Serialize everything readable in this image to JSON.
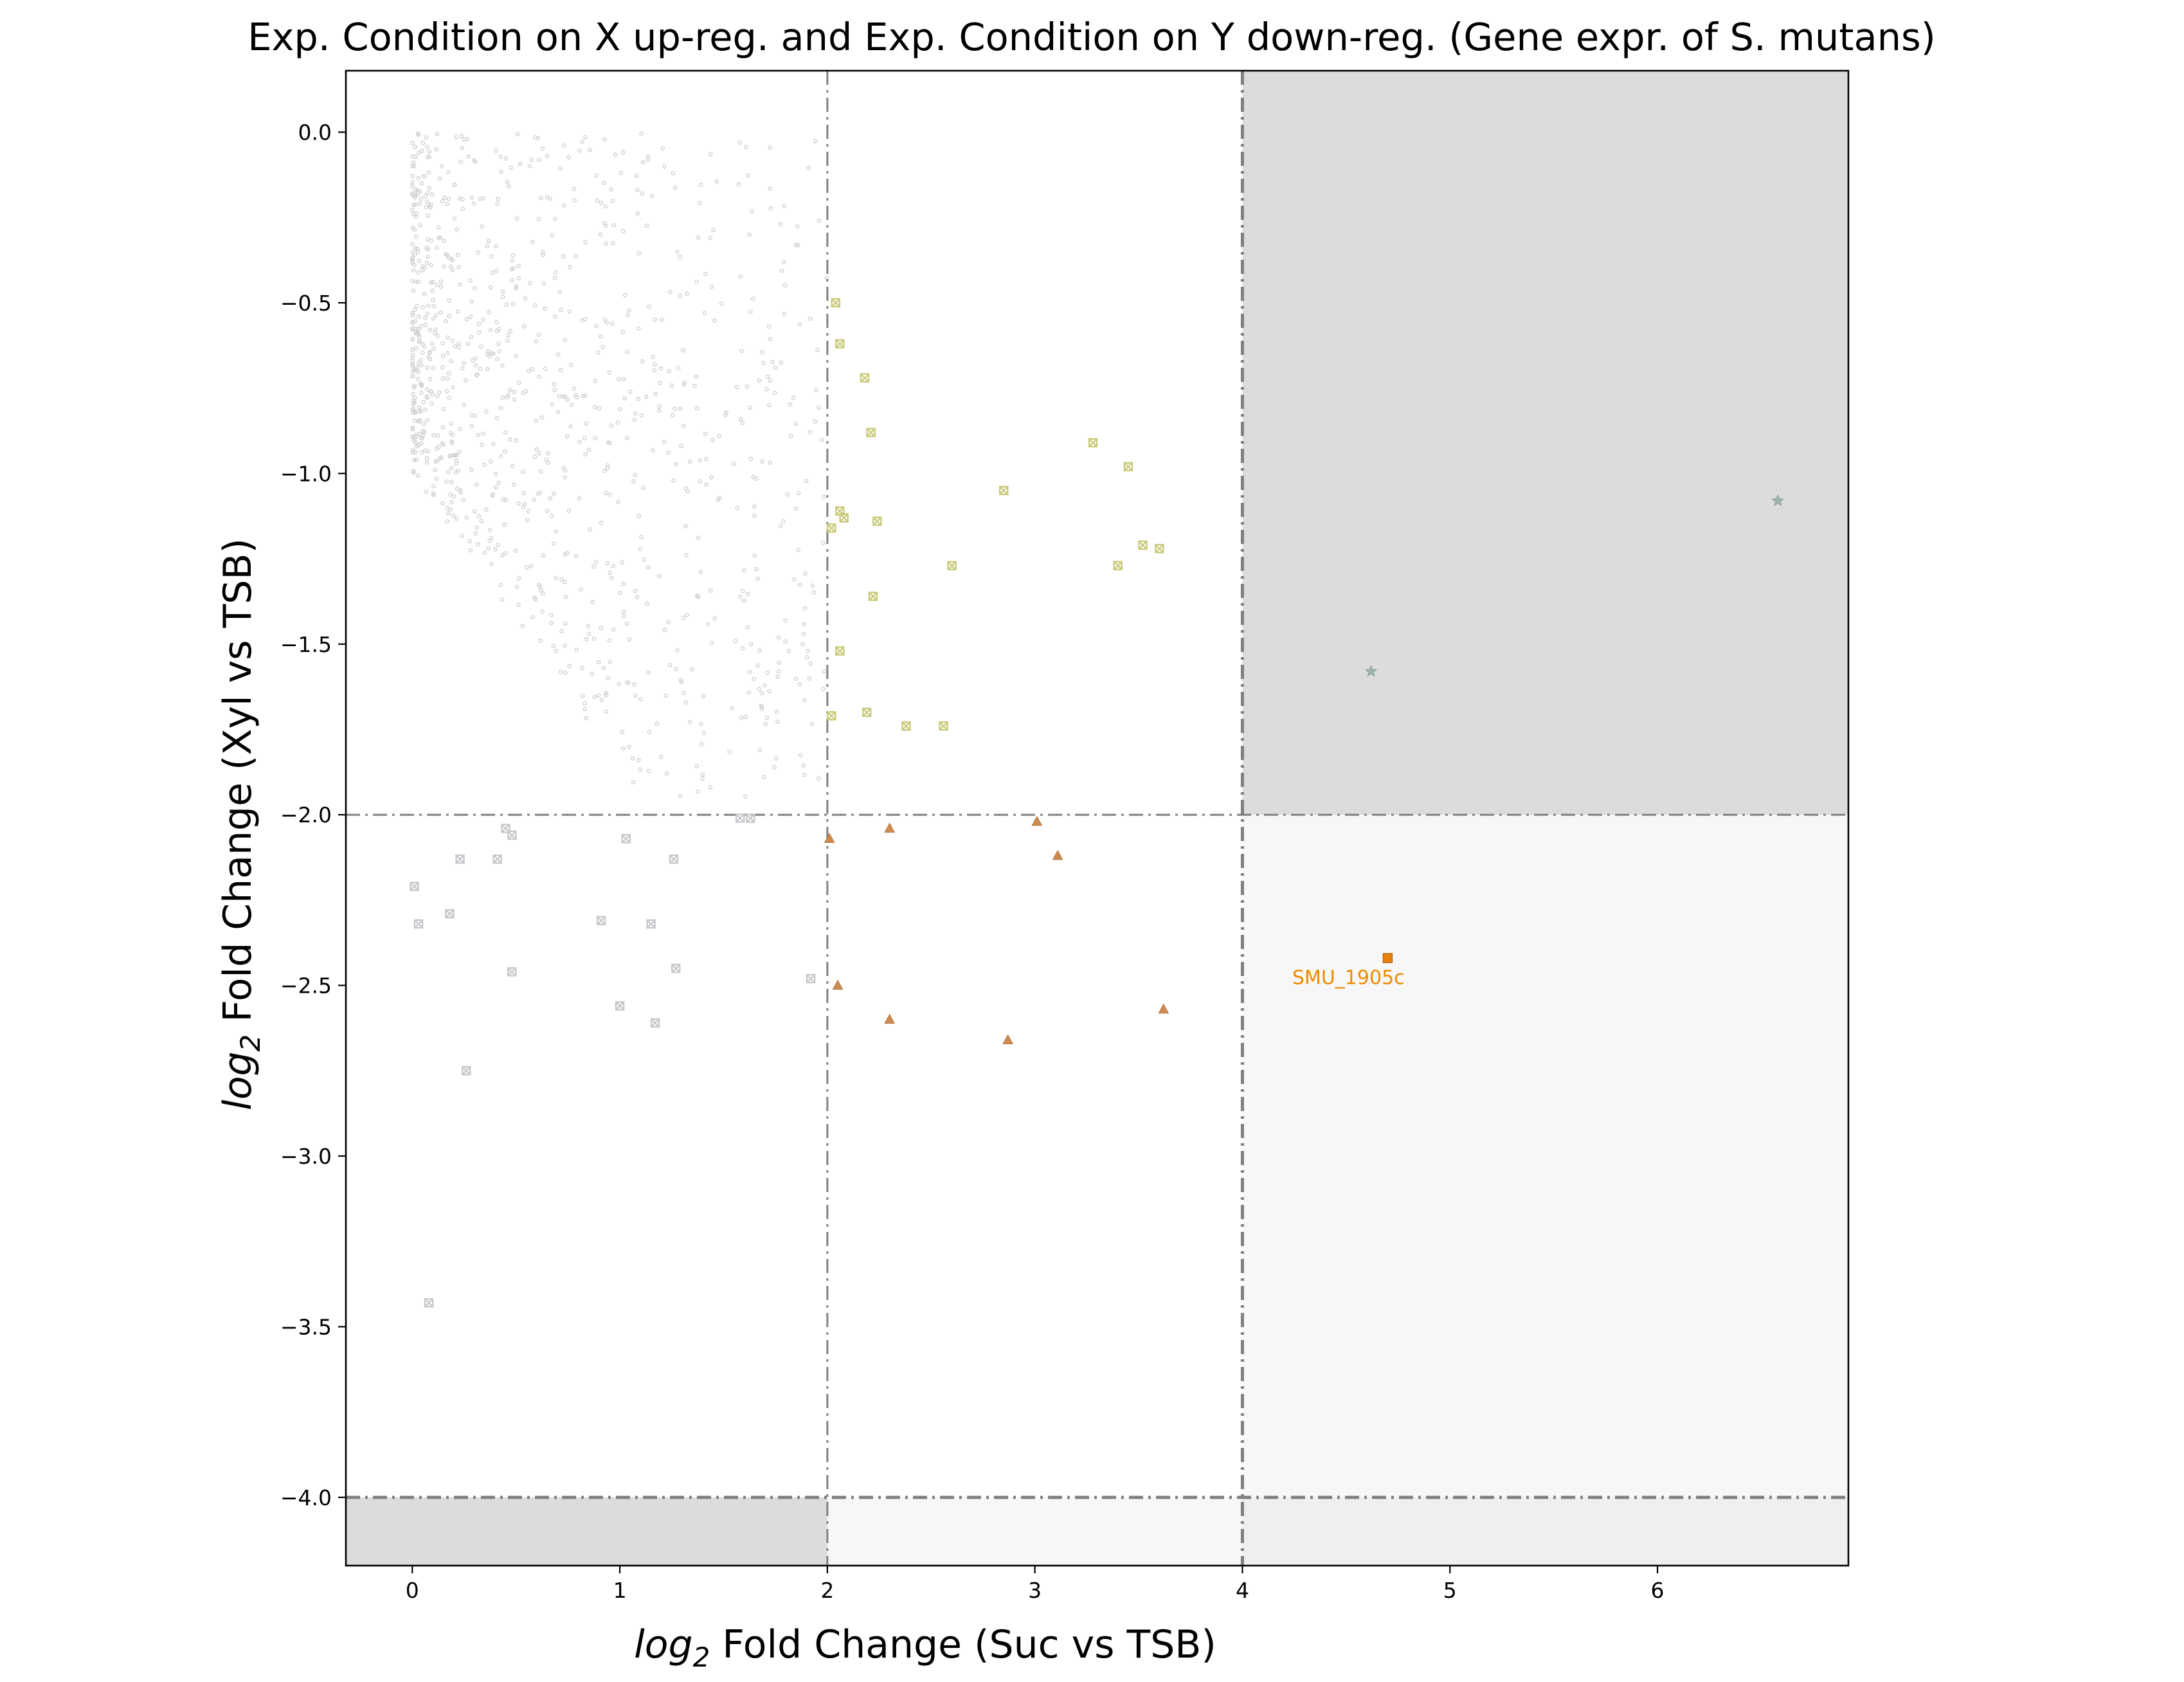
{
  "chart_data": {
    "type": "scatter",
    "title": "Exp. Condition on X up-reg. and Exp. Condition on Y down-reg. (Gene expr. of S. mutans)",
    "xlabel_prefix": "log",
    "xlabel_sub": "2",
    "xlabel_rest": " Fold Change (Suc vs TSB)",
    "ylabel_prefix": "log",
    "ylabel_sub": "2",
    "ylabel_rest": " Fold Change (Xyl vs TSB)",
    "xlim": [
      -0.32,
      6.92
    ],
    "ylim": [
      -4.2,
      0.18
    ],
    "xticks": [
      0,
      1,
      2,
      3,
      4,
      5,
      6
    ],
    "yticks": [
      0.0,
      -0.5,
      -1.0,
      -1.5,
      -2.0,
      -2.5,
      -3.0,
      -3.5,
      -4.0
    ],
    "xtick_labels": [
      "0",
      "1",
      "2",
      "3",
      "4",
      "5",
      "6"
    ],
    "ytick_labels": [
      "0.0",
      "−0.5",
      "−1.0",
      "−1.5",
      "−2.0",
      "−2.5",
      "−3.0",
      "−3.5",
      "−4.0"
    ],
    "thresholds": {
      "x": [
        2,
        4
      ],
      "y": [
        -2,
        -4
      ]
    },
    "regions": [
      {
        "x": [
          4,
          6.92
        ],
        "y": [
          -2,
          0.18
        ],
        "color": "#dcdcdc"
      },
      {
        "x": [
          4,
          6.92
        ],
        "y": [
          -4,
          -2
        ],
        "color": "#f7f7f7"
      },
      {
        "x": [
          -0.32,
          2
        ],
        "y": [
          -4.2,
          -4
        ],
        "color": "#dcdcdc"
      },
      {
        "x": [
          2,
          4
        ],
        "y": [
          -4.2,
          -4
        ],
        "color": "#f7f7f7"
      },
      {
        "x": [
          4,
          6.92
        ],
        "y": [
          -4.2,
          -4
        ],
        "color": "#efefef"
      }
    ],
    "background_cloud": {
      "color": "#cfcfcf",
      "count": 1000,
      "x_range": [
        0,
        2
      ],
      "y_range": [
        -1.95,
        0
      ]
    },
    "series": [
      {
        "marker": "square-x",
        "color": "#c9ca7a",
        "points": [
          [
            2.04,
            -0.5
          ],
          [
            2.06,
            -0.62
          ],
          [
            2.18,
            -0.72
          ],
          [
            2.21,
            -0.88
          ],
          [
            2.06,
            -1.11
          ],
          [
            2.08,
            -1.13
          ],
          [
            2.02,
            -1.16
          ],
          [
            2.24,
            -1.14
          ],
          [
            2.22,
            -1.36
          ],
          [
            2.06,
            -1.52
          ],
          [
            2.02,
            -1.71
          ],
          [
            2.19,
            -1.7
          ],
          [
            2.38,
            -1.74
          ],
          [
            2.56,
            -1.74
          ],
          [
            2.6,
            -1.27
          ],
          [
            2.85,
            -1.05
          ],
          [
            3.28,
            -0.91
          ],
          [
            3.45,
            -0.98
          ],
          [
            3.4,
            -1.27
          ],
          [
            3.52,
            -1.21
          ],
          [
            3.6,
            -1.22
          ]
        ]
      },
      {
        "marker": "square-x",
        "color": "#c8c8cc",
        "points": [
          [
            0.01,
            -2.21
          ],
          [
            0.03,
            -2.32
          ],
          [
            0.18,
            -2.29
          ],
          [
            0.23,
            -2.13
          ],
          [
            0.26,
            -2.75
          ],
          [
            0.08,
            -3.43
          ],
          [
            0.41,
            -2.13
          ],
          [
            0.45,
            -2.04
          ],
          [
            0.48,
            -2.06
          ],
          [
            0.48,
            -2.46
          ],
          [
            0.91,
            -2.31
          ],
          [
            1.0,
            -2.56
          ],
          [
            1.03,
            -2.07
          ],
          [
            1.15,
            -2.32
          ],
          [
            1.17,
            -2.61
          ],
          [
            1.26,
            -2.13
          ],
          [
            1.27,
            -2.45
          ],
          [
            1.58,
            -2.01
          ],
          [
            1.63,
            -2.01
          ],
          [
            1.92,
            -2.48
          ]
        ]
      },
      {
        "marker": "triangle",
        "color": "#cd8b50",
        "points": [
          [
            2.01,
            -2.07
          ],
          [
            2.05,
            -2.5
          ],
          [
            2.3,
            -2.04
          ],
          [
            2.3,
            -2.6
          ],
          [
            2.87,
            -2.66
          ],
          [
            3.01,
            -2.02
          ],
          [
            3.11,
            -2.12
          ],
          [
            3.62,
            -2.57
          ]
        ]
      },
      {
        "marker": "star",
        "color": "#9fb4ae",
        "points": [
          [
            4.62,
            -1.58
          ],
          [
            6.58,
            -1.08
          ]
        ]
      },
      {
        "marker": "square",
        "color": "#e8820c",
        "points": [
          [
            4.7,
            -2.42
          ]
        ]
      }
    ],
    "annotations": [
      {
        "text": "SMU_1905c",
        "x": 4.24,
        "y": -2.47,
        "color": "#ee8a00"
      }
    ]
  }
}
